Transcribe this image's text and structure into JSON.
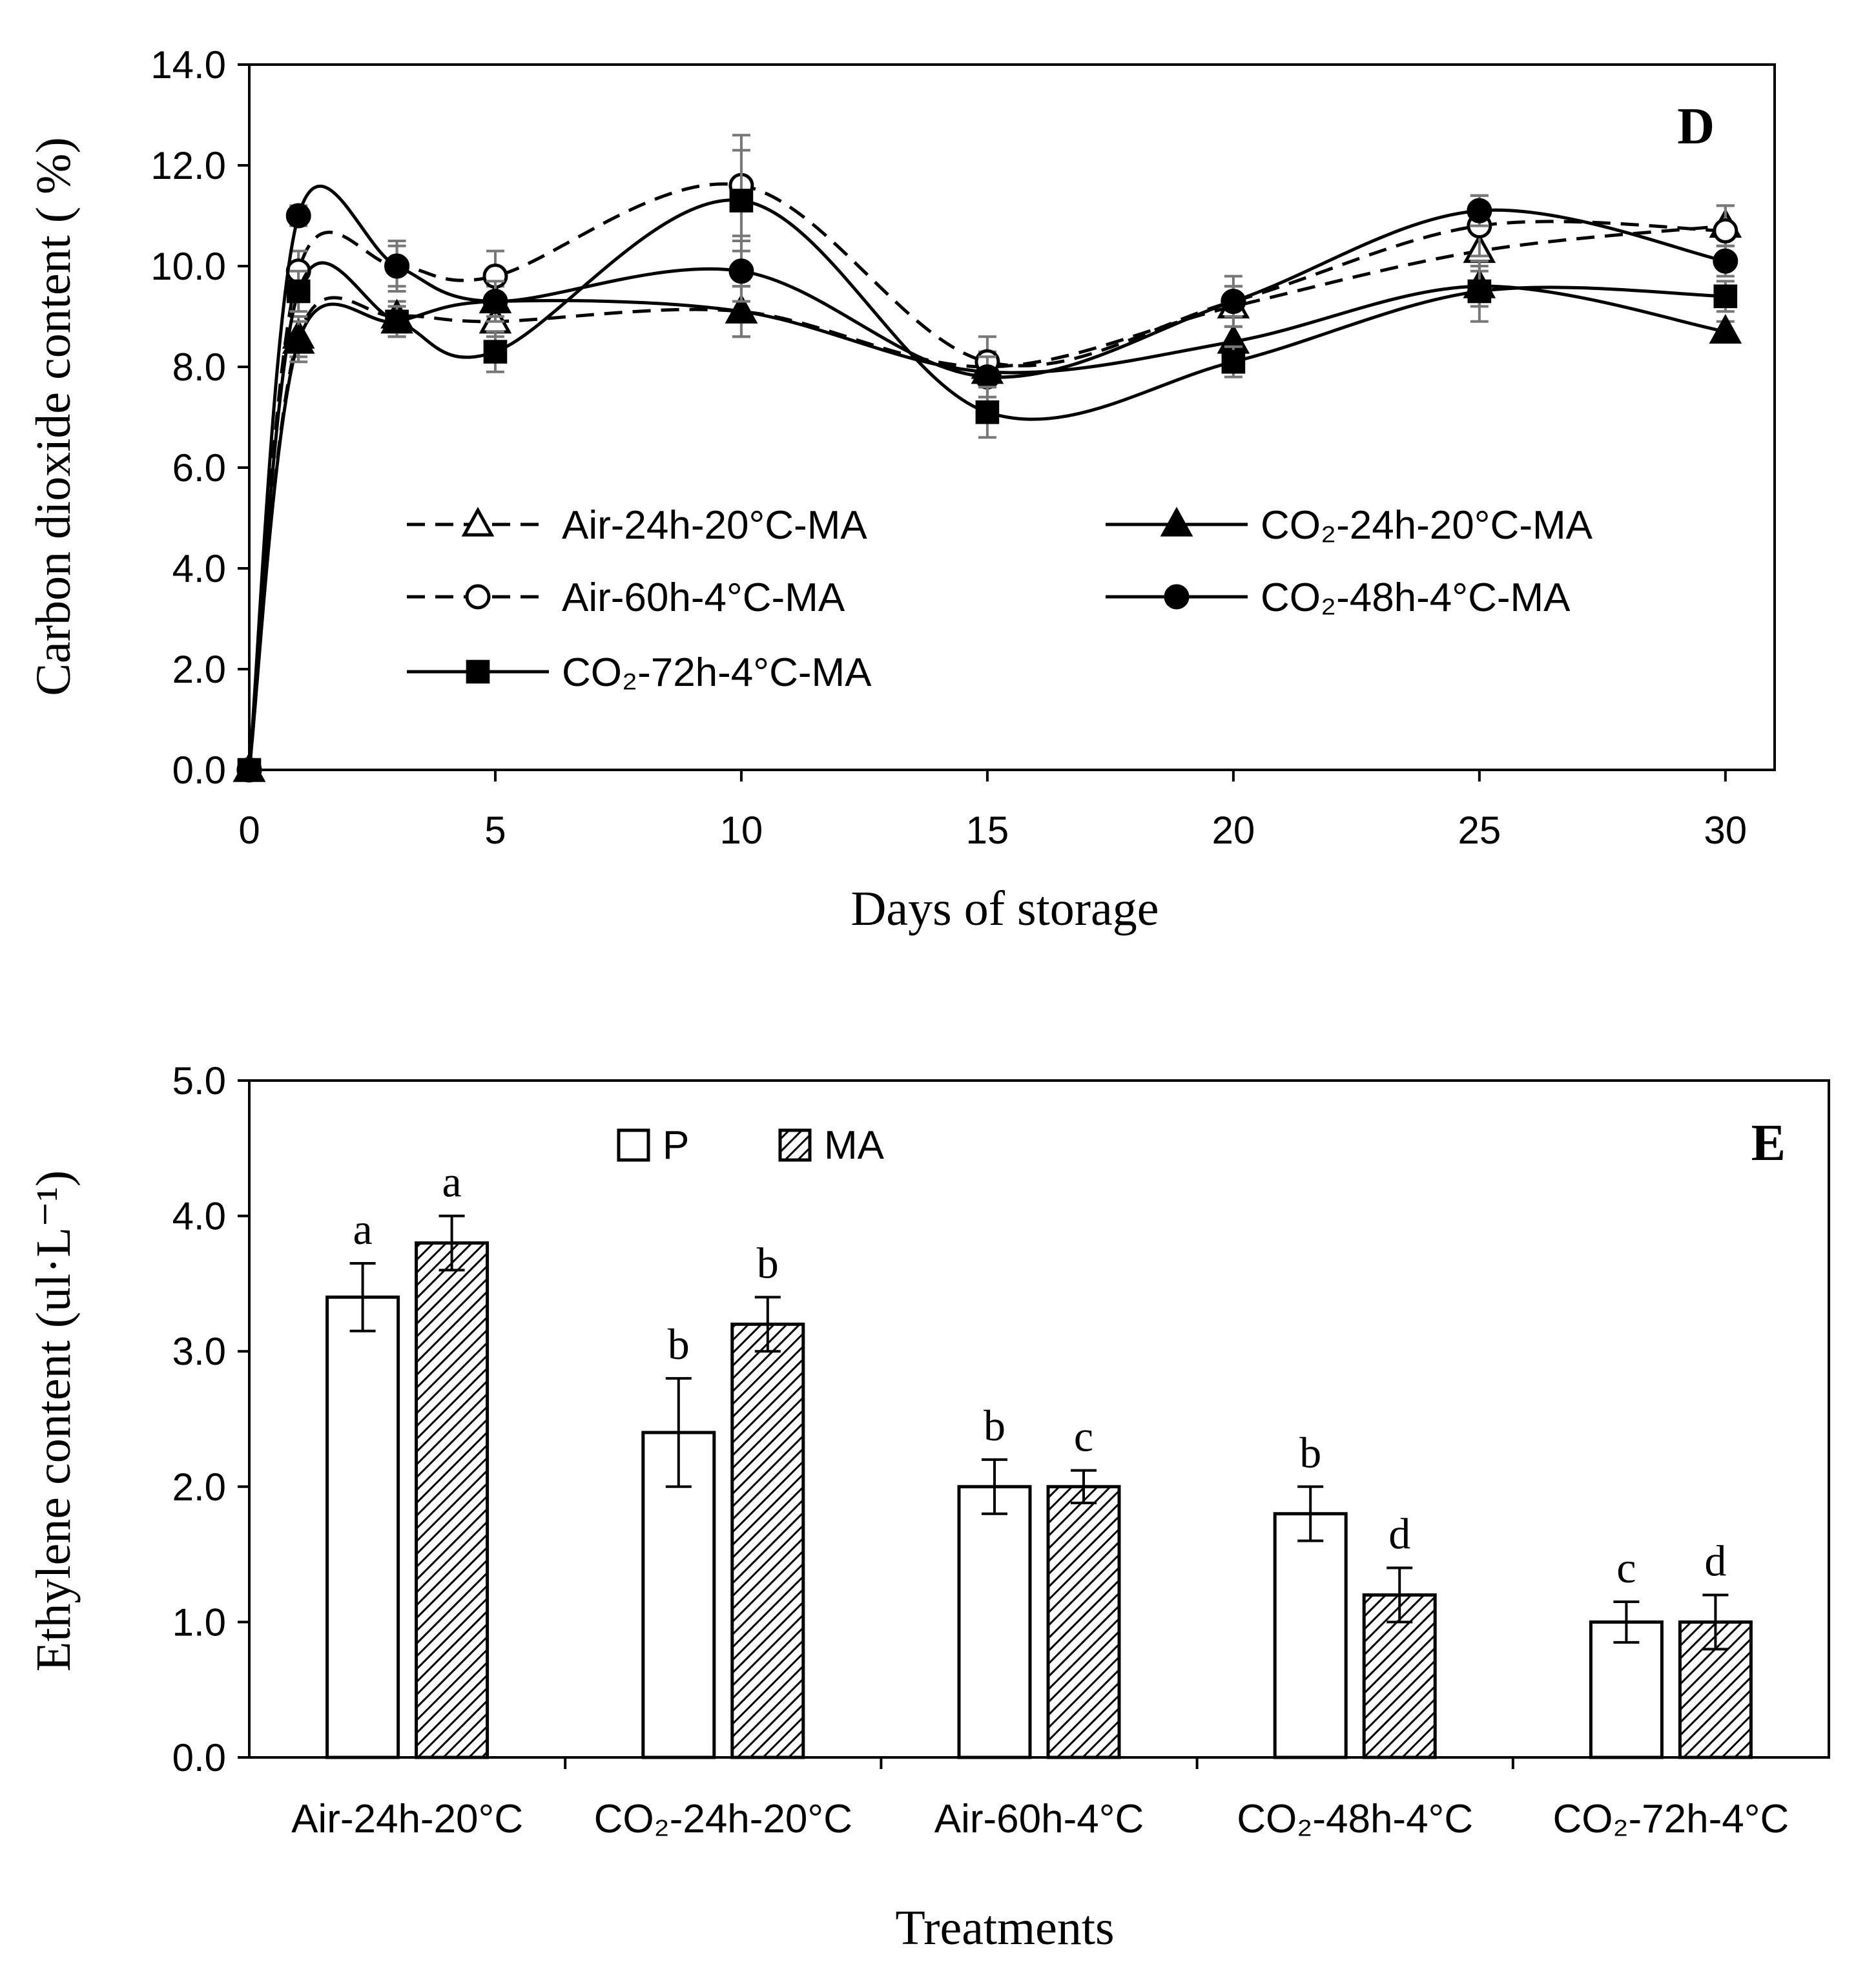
{
  "chart_data": [
    {
      "type": "line",
      "panel": "D",
      "xlabel": "Days of storage",
      "ylabel": "Carbon dioxide content ( %)",
      "xlim": [
        0,
        31
      ],
      "ylim": [
        0,
        14
      ],
      "xticks": [
        "0",
        "5",
        "10",
        "15",
        "20",
        "25",
        "30"
      ],
      "yticks": [
        "0.0",
        "2.0",
        "4.0",
        "6.0",
        "8.0",
        "10.0",
        "12.0",
        "14.0"
      ],
      "legend_position": "center",
      "x": [
        0,
        1,
        3,
        5,
        10,
        15,
        20,
        25,
        30
      ],
      "series": [
        {
          "name": "Air-24h-20°C-MA",
          "line": "dashed",
          "marker": "triangle-open",
          "values": [
            0,
            8.6,
            9.0,
            8.9,
            9.1,
            8.0,
            9.2,
            10.3,
            10.8
          ],
          "errors": [
            0,
            0.4,
            0.3,
            0.3,
            0.5,
            0.3,
            0.4,
            0.4,
            0.4
          ]
        },
        {
          "name": "CO₂-24h-20°C-MA",
          "line": "solid",
          "marker": "triangle-filled",
          "values": [
            0,
            8.5,
            8.9,
            9.3,
            9.1,
            7.9,
            8.5,
            9.6,
            8.7
          ],
          "errors": [
            0,
            0.4,
            0.3,
            0.3,
            0.5,
            0.3,
            0.3,
            0.4,
            0.2
          ]
        },
        {
          "name": "Air-60h-4°C-MA",
          "line": "dashed",
          "marker": "circle-open",
          "values": [
            0,
            9.9,
            10.0,
            9.8,
            11.6,
            8.1,
            9.3,
            10.8,
            10.7
          ],
          "errors": [
            0,
            0.4,
            0.5,
            0.5,
            1.0,
            0.5,
            0.5,
            0.6,
            0.5
          ]
        },
        {
          "name": "CO₂-48h-4°C-MA",
          "line": "solid",
          "marker": "circle-filled",
          "values": [
            0,
            11.0,
            10.0,
            9.3,
            9.9,
            7.8,
            9.3,
            11.1,
            10.1
          ],
          "errors": [
            0,
            0.2,
            0.4,
            0.4,
            0.6,
            0.4,
            0.3,
            0.3,
            0.3
          ]
        },
        {
          "name": "CO₂-72h-4°C-MA",
          "line": "solid",
          "marker": "square-filled",
          "values": [
            0,
            9.5,
            8.9,
            8.3,
            11.3,
            7.1,
            8.1,
            9.5,
            9.4
          ],
          "errors": [
            0,
            0.4,
            0.3,
            0.4,
            1.0,
            0.5,
            0.3,
            0.6,
            0.3
          ]
        }
      ]
    },
    {
      "type": "bar",
      "panel": "E",
      "xlabel": "Treatments",
      "ylabel": "Ethylene content (ul·L⁻¹)",
      "ylim": [
        0,
        5
      ],
      "yticks": [
        "0.0",
        "1.0",
        "2.0",
        "3.0",
        "4.0",
        "5.0"
      ],
      "legend_position": "top-center",
      "categories": [
        "Air-24h-20°C",
        "CO₂-24h-20°C",
        "Air-60h-4°C",
        "CO₂-48h-4°C",
        "CO₂-72h-4°C"
      ],
      "series": [
        {
          "name": "P",
          "fill": "white",
          "values": [
            3.4,
            2.4,
            2.0,
            1.8,
            1.0
          ],
          "errors": [
            0.25,
            0.4,
            0.2,
            0.2,
            0.15
          ],
          "letters": [
            "a",
            "b",
            "b",
            "b",
            "c"
          ]
        },
        {
          "name": "MA",
          "fill": "hatched",
          "values": [
            3.8,
            3.2,
            2.0,
            1.2,
            1.0
          ],
          "errors": [
            0.2,
            0.2,
            0.12,
            0.2,
            0.2
          ],
          "letters": [
            "a",
            "b",
            "c",
            "d",
            "d"
          ]
        }
      ]
    }
  ]
}
